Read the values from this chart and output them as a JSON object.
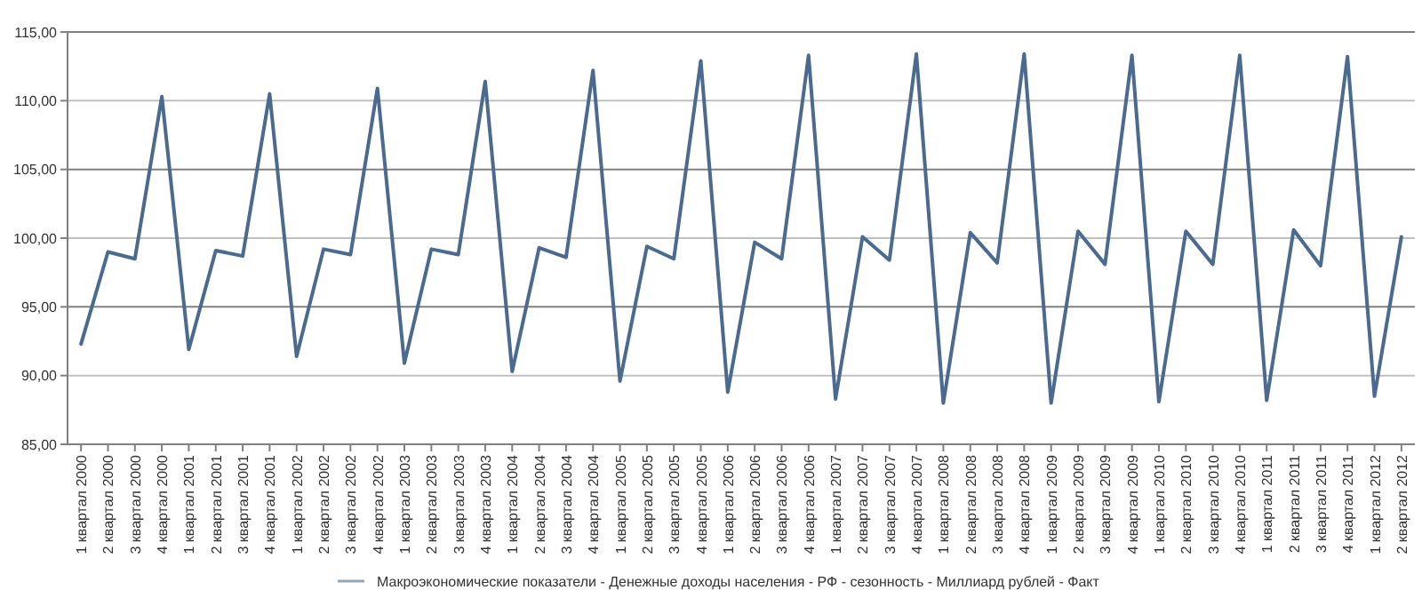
{
  "chart_data": {
    "type": "line",
    "categories": [
      "1 квартал 2000",
      "2 квартал 2000",
      "3 квартал 2000",
      "4 квартал 2000",
      "1 квартал 2001",
      "2 квартал 2001",
      "3 квартал 2001",
      "4 квартал 2001",
      "1 квартал 2002",
      "2 квартал 2002",
      "3 квартал 2002",
      "4 квартал 2002",
      "1 квартал 2003",
      "2 квартал 2003",
      "3 квартал 2003",
      "4 квартал 2003",
      "1 квартал 2004",
      "2 квартал 2004",
      "3 квартал 2004",
      "4 квартал 2004",
      "1 квартал 2005",
      "2 квартал 2005",
      "3 квартал 2005",
      "4 квартал 2005",
      "1 квартал 2006",
      "2 квартал 2006",
      "3 квартал 2006",
      "4 квартал 2006",
      "1 квартал 2007",
      "2 квартал 2007",
      "3 квартал 2007",
      "4 квартал 2007",
      "1 квартал 2008",
      "2 квартал 2008",
      "3 квартал 2008",
      "4 квартал 2008",
      "1 квартал 2009",
      "2 квартал 2009",
      "3 квартал 2009",
      "4 квартал 2009",
      "1 квартал 2010",
      "2 квартал 2010",
      "3 квартал 2010",
      "4 квартал 2010",
      "1 квартал 2011",
      "2 квартал 2011",
      "3 квартал 2011",
      "4 квартал 2011",
      "1 квартал 2012",
      "2 квартал 2012"
    ],
    "series": [
      {
        "name": "Макроэкономические показатели - Денежные доходы населения - РФ - сезонность - Миллиард рублей - Факт",
        "color": "#4a6a8f",
        "values": [
          92.3,
          99.0,
          98.5,
          110.3,
          91.9,
          99.1,
          98.7,
          110.5,
          91.4,
          99.2,
          98.8,
          110.9,
          90.9,
          99.2,
          98.8,
          111.4,
          90.3,
          99.3,
          98.6,
          112.2,
          89.6,
          99.4,
          98.5,
          112.9,
          88.8,
          99.7,
          98.5,
          113.3,
          88.3,
          100.1,
          98.4,
          113.4,
          88.0,
          100.4,
          98.2,
          113.4,
          88.0,
          100.5,
          98.1,
          113.3,
          88.1,
          100.5,
          98.1,
          113.3,
          88.2,
          100.6,
          98.0,
          113.2,
          88.5,
          100.1
        ]
      }
    ],
    "ylim": [
      85,
      115
    ],
    "yticks": [
      {
        "value": 85,
        "label": "85,00"
      },
      {
        "value": 90,
        "label": "90,00"
      },
      {
        "value": 95,
        "label": "95,00"
      },
      {
        "value": 100,
        "label": "100,00"
      },
      {
        "value": 105,
        "label": "105,00"
      },
      {
        "value": 110,
        "label": "110,00"
      },
      {
        "value": 115,
        "label": "115,00"
      }
    ],
    "grid": "y",
    "legend": "bottom",
    "marker": "none",
    "line_style": "solid"
  }
}
